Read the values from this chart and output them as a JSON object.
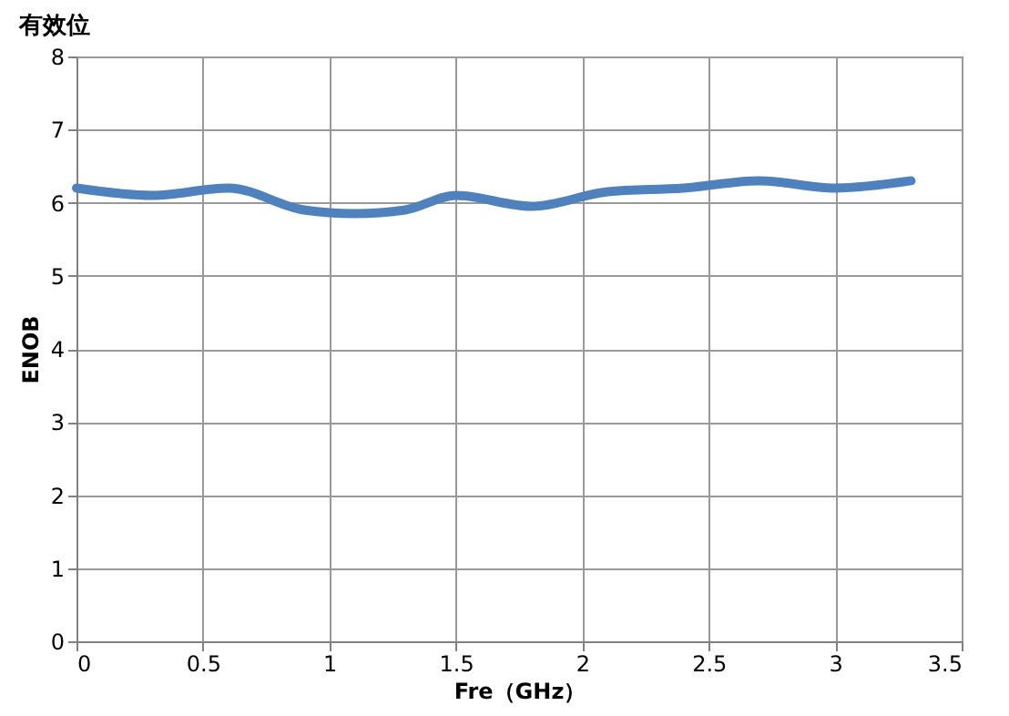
{
  "chart_data": {
    "type": "line",
    "title": "有效位",
    "xlabel": "Fre（GHz）",
    "ylabel": "ENOB",
    "x": [
      0,
      0.3,
      0.6,
      0.9,
      1.1,
      1.3,
      1.5,
      1.8,
      2.1,
      2.4,
      2.7,
      3.0,
      3.3
    ],
    "series": [
      {
        "color": "#4f81bd",
        "values": [
          6.2,
          6.1,
          6.2,
          5.9,
          5.85,
          5.9,
          6.1,
          5.95,
          6.15,
          6.2,
          6.3,
          6.2,
          6.3
        ]
      }
    ],
    "xlim": [
      0,
      3.5
    ],
    "xticks": [
      0,
      0.5,
      1,
      1.5,
      2,
      2.5,
      3,
      3.5
    ],
    "ylim": [
      0,
      8
    ],
    "yticks": [
      0,
      1,
      2,
      3,
      4,
      5,
      6,
      7,
      8
    ],
    "grid": true,
    "marker": "none",
    "line_style": "solid"
  }
}
